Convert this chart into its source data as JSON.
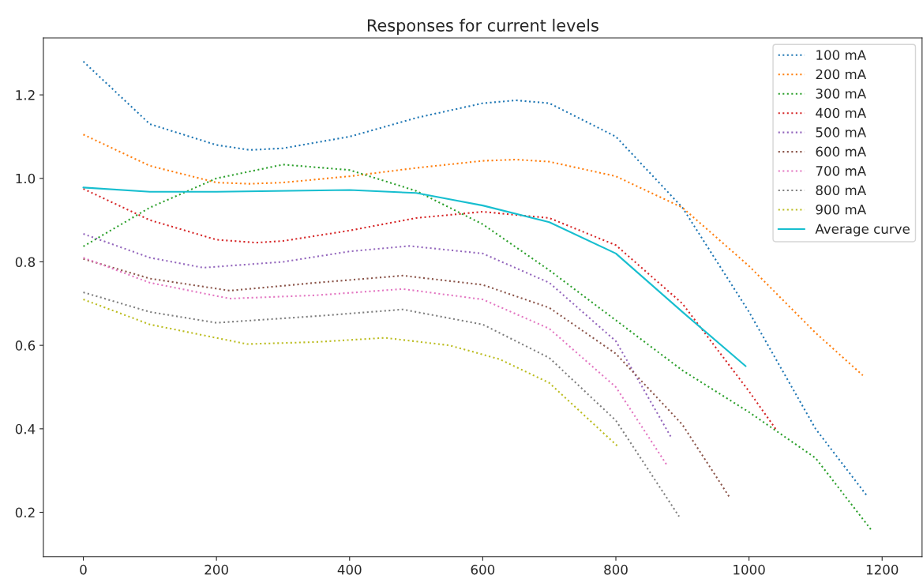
{
  "chart_data": {
    "type": "line",
    "title": "Responses for current levels",
    "xlim": [
      -60,
      1260
    ],
    "ylim": [
      0.0935,
      1.3365
    ],
    "xticks": [
      0,
      200,
      400,
      600,
      800,
      1000,
      1200
    ],
    "yticks": [
      0.2,
      0.4,
      0.6,
      0.8,
      {
        "value": 1,
        "label": "1.0"
      },
      1.2
    ],
    "legend": "top right",
    "grid": false,
    "marker": "none",
    "series": [
      {
        "name": "100 mA",
        "color": "#1f77b4",
        "line_style": "dotted",
        "x": [
          0,
          100,
          200,
          250,
          300,
          400,
          500,
          600,
          650,
          700,
          800,
          900,
          1000,
          1100,
          1177
        ],
        "values": [
          1.28,
          1.13,
          1.08,
          1.068,
          1.072,
          1.1,
          1.145,
          1.18,
          1.187,
          1.18,
          1.1,
          0.93,
          0.68,
          0.4,
          0.24
        ]
      },
      {
        "name": "200 mA",
        "color": "#ff7f0e",
        "line_style": "dotted",
        "x": [
          0,
          100,
          200,
          250,
          300,
          400,
          500,
          600,
          650,
          700,
          800,
          900,
          1000,
          1100,
          1171
        ],
        "values": [
          1.105,
          1.03,
          0.99,
          0.987,
          0.99,
          1.005,
          1.025,
          1.042,
          1.045,
          1.04,
          1.005,
          0.93,
          0.79,
          0.63,
          0.528
        ]
      },
      {
        "name": "300 mA",
        "color": "#2ca02c",
        "line_style": "dotted",
        "x": [
          0,
          100,
          200,
          300,
          400,
          500,
          600,
          700,
          800,
          900,
          1000,
          1100,
          1185
        ],
        "values": [
          0.837,
          0.93,
          1.0,
          1.033,
          1.02,
          0.97,
          0.89,
          0.78,
          0.66,
          0.54,
          0.44,
          0.33,
          0.155
        ]
      },
      {
        "name": "400 mA",
        "color": "#d62728",
        "line_style": "dotted",
        "x": [
          0,
          100,
          200,
          260,
          300,
          400,
          500,
          600,
          700,
          800,
          900,
          1000,
          1040
        ],
        "values": [
          0.975,
          0.9,
          0.853,
          0.846,
          0.85,
          0.875,
          0.905,
          0.92,
          0.905,
          0.84,
          0.7,
          0.49,
          0.4
        ]
      },
      {
        "name": "500 mA",
        "color": "#9467bd",
        "line_style": "dotted",
        "x": [
          0,
          100,
          180,
          300,
          400,
          490,
          600,
          700,
          800,
          884
        ],
        "values": [
          0.867,
          0.81,
          0.786,
          0.8,
          0.825,
          0.838,
          0.82,
          0.75,
          0.61,
          0.377
        ]
      },
      {
        "name": "600 mA",
        "color": "#8c564b",
        "line_style": "dotted",
        "x": [
          0,
          100,
          220,
          350,
          480,
          600,
          700,
          800,
          900,
          970
        ],
        "values": [
          0.807,
          0.76,
          0.731,
          0.75,
          0.767,
          0.745,
          0.69,
          0.58,
          0.41,
          0.238
        ]
      },
      {
        "name": "700 mA",
        "color": "#e377c2",
        "line_style": "dotted",
        "x": [
          0,
          100,
          220,
          350,
          480,
          600,
          700,
          800,
          878
        ],
        "values": [
          0.81,
          0.75,
          0.712,
          0.72,
          0.735,
          0.71,
          0.64,
          0.5,
          0.31
        ]
      },
      {
        "name": "800 mA",
        "color": "#7f7f7f",
        "line_style": "dotted",
        "x": [
          0,
          100,
          200,
          350,
          480,
          600,
          700,
          800,
          895
        ],
        "values": [
          0.727,
          0.68,
          0.654,
          0.67,
          0.686,
          0.65,
          0.57,
          0.42,
          0.19
        ]
      },
      {
        "name": "900 mA",
        "color": "#bcbd22",
        "line_style": "dotted",
        "x": [
          0,
          100,
          246,
          350,
          453,
          550,
          625,
          700,
          803
        ],
        "values": [
          0.71,
          0.65,
          0.603,
          0.608,
          0.618,
          0.6,
          0.567,
          0.51,
          0.358
        ]
      },
      {
        "name": "Average curve",
        "color": "#17becf",
        "line_style": "solid",
        "x": [
          0,
          100,
          200,
          400,
          500,
          600,
          700,
          800,
          900,
          995
        ],
        "values": [
          0.978,
          0.968,
          0.968,
          0.972,
          0.965,
          0.935,
          0.895,
          0.82,
          0.68,
          0.55
        ]
      }
    ]
  }
}
